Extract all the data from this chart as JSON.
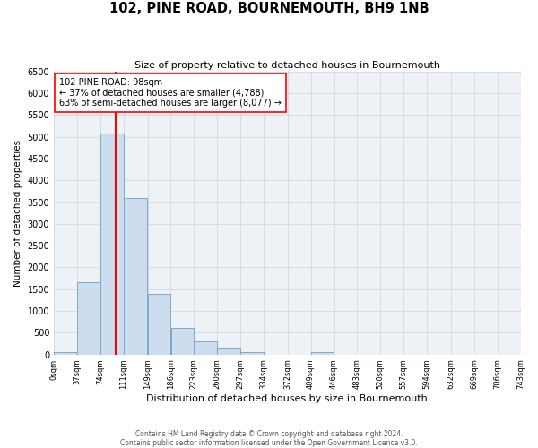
{
  "title": "102, PINE ROAD, BOURNEMOUTH, BH9 1NB",
  "subtitle": "Size of property relative to detached houses in Bournemouth",
  "xlabel": "Distribution of detached houses by size in Bournemouth",
  "ylabel": "Number of detached properties",
  "bin_edges": [
    0,
    37,
    74,
    111,
    149,
    186,
    223,
    260,
    297,
    334,
    372,
    409,
    446,
    483,
    520,
    557,
    594,
    632,
    669,
    706,
    743
  ],
  "bin_counts": [
    50,
    1650,
    5080,
    3600,
    1400,
    610,
    300,
    150,
    60,
    0,
    0,
    50,
    0,
    0,
    0,
    0,
    0,
    0,
    0,
    0
  ],
  "bar_facecolor": "#ccdded",
  "bar_edgecolor": "#7aaac8",
  "grid_color": "#c8d4e0",
  "background_color": "#eef2f7",
  "vline_x": 98,
  "vline_color": "red",
  "annotation_line1": "102 PINE ROAD: 98sqm",
  "annotation_line2": "← 37% of detached houses are smaller (4,788)",
  "annotation_line3": "63% of semi-detached houses are larger (8,077) →",
  "annotation_box_color": "white",
  "annotation_box_edgecolor": "red",
  "ylim": [
    0,
    6500
  ],
  "yticks": [
    0,
    500,
    1000,
    1500,
    2000,
    2500,
    3000,
    3500,
    4000,
    4500,
    5000,
    5500,
    6000,
    6500
  ],
  "tick_labels": [
    "0sqm",
    "37sqm",
    "74sqm",
    "111sqm",
    "149sqm",
    "186sqm",
    "223sqm",
    "260sqm",
    "297sqm",
    "334sqm",
    "372sqm",
    "409sqm",
    "446sqm",
    "483sqm",
    "520sqm",
    "557sqm",
    "594sqm",
    "632sqm",
    "669sqm",
    "706sqm",
    "743sqm"
  ],
  "footer": "Contains HM Land Registry data © Crown copyright and database right 2024.\nContains public sector information licensed under the Open Government Licence v3.0."
}
